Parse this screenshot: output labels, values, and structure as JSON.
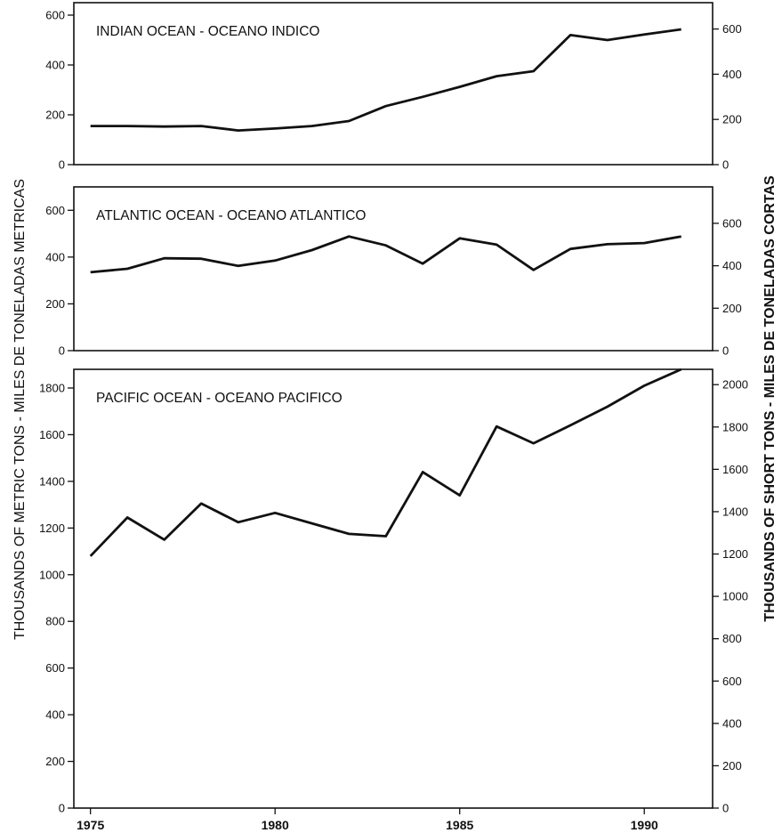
{
  "chart_data": {
    "type": "line",
    "ylabel_left": "THOUSANDS OF METRIC TONS - MILES DE TONELADAS METRICAS",
    "ylabel_right": "THOUSANDS OF SHORT TONS - MILES DE TONELADAS CORTAS",
    "x_ticks": [
      1975,
      1980,
      1985,
      1990
    ],
    "panels": [
      {
        "title": "INDIAN OCEAN - OCEANO INDICO",
        "x": [
          1975,
          1976,
          1977,
          1978,
          1979,
          1980,
          1981,
          1982,
          1983,
          1984,
          1985,
          1986,
          1987,
          1988,
          1989,
          1990,
          1991
        ],
        "values": [
          155,
          155,
          153,
          155,
          137,
          145,
          155,
          175,
          235,
          272,
          312,
          355,
          375,
          520,
          500,
          522,
          543
        ],
        "ylim_left": [
          0,
          650
        ],
        "yticks_left": [
          0,
          200,
          400,
          600
        ],
        "ylim_right_short_tons": [
          0,
          716.5
        ],
        "yticks_right": [
          0,
          200,
          400,
          600
        ]
      },
      {
        "title": "ATLANTIC OCEAN - OCEANO ATLANTICO",
        "x": [
          1975,
          1976,
          1977,
          1978,
          1979,
          1980,
          1981,
          1982,
          1983,
          1984,
          1985,
          1986,
          1987,
          1988,
          1989,
          1990,
          1991
        ],
        "values": [
          335,
          350,
          395,
          393,
          362,
          385,
          430,
          488,
          450,
          372,
          480,
          453,
          345,
          435,
          455,
          460,
          488
        ],
        "ylim_left": [
          0,
          700
        ],
        "yticks_left": [
          0,
          200,
          400,
          600
        ],
        "ylim_right_short_tons": [
          0,
          771.6
        ],
        "yticks_right": [
          0,
          200,
          400,
          600
        ]
      },
      {
        "title": "PACIFIC OCEAN - OCEANO PACIFICO",
        "x": [
          1975,
          1976,
          1977,
          1978,
          1979,
          1980,
          1981,
          1982,
          1983,
          1984,
          1985,
          1986,
          1987,
          1988,
          1989,
          1990,
          1991
        ],
        "values": [
          1080,
          1245,
          1150,
          1305,
          1225,
          1265,
          1220,
          1175,
          1165,
          1440,
          1340,
          1635,
          1563,
          1640,
          1720,
          1810,
          1880
        ],
        "ylim_left": [
          0,
          1880
        ],
        "yticks_left": [
          0,
          200,
          400,
          600,
          800,
          1000,
          1200,
          1400,
          1600,
          1800
        ],
        "ylim_right_short_tons": [
          0,
          2072.3
        ],
        "yticks_right": [
          0,
          200,
          400,
          600,
          800,
          1000,
          1200,
          1400,
          1600,
          1800,
          2000
        ]
      }
    ]
  }
}
